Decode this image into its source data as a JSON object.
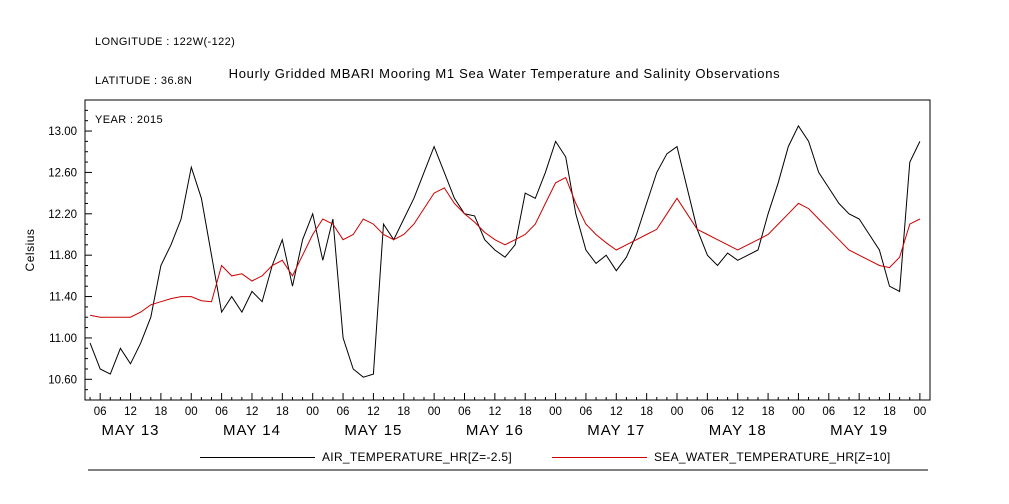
{
  "header": {
    "longitude": "LONGITUDE : 122W(-122)",
    "latitude": "LATITUDE : 36.8N",
    "year": "YEAR : 2015"
  },
  "chart_data": {
    "type": "line",
    "title": "Hourly Gridded MBARI Mooring M1 Sea Water Temperature and Salinity Observations",
    "xlabel": "",
    "ylabel": "Celsius",
    "x_unit": "hours since 2015-05-13 00:00",
    "xlim": [
      3,
      170
    ],
    "ylim": [
      10.4,
      13.3
    ],
    "grid": false,
    "legend_position": "bottom",
    "yticks": [
      10.6,
      11.0,
      11.4,
      11.8,
      12.2,
      12.6,
      13.0
    ],
    "ytick_labels": [
      "10.60",
      "11.00",
      "11.40",
      "11.80",
      "12.20",
      "12.60",
      "13.00"
    ],
    "xtick_hours": [
      6,
      12,
      18,
      24,
      30,
      36,
      42,
      48,
      54,
      60,
      66,
      72,
      78,
      84,
      90,
      96,
      102,
      108,
      114,
      120,
      126,
      132,
      138,
      144,
      150,
      156,
      162,
      168
    ],
    "xtick_labels": [
      "06",
      "12",
      "18",
      "00",
      "06",
      "12",
      "18",
      "00",
      "06",
      "12",
      "18",
      "00",
      "06",
      "12",
      "18",
      "00",
      "06",
      "12",
      "18",
      "00",
      "06",
      "12",
      "18",
      "00",
      "06",
      "12",
      "18",
      "00"
    ],
    "day_labels": [
      {
        "label": "MAY 13",
        "hour": 12
      },
      {
        "label": "MAY 14",
        "hour": 36
      },
      {
        "label": "MAY 15",
        "hour": 60
      },
      {
        "label": "MAY 16",
        "hour": 84
      },
      {
        "label": "MAY 17",
        "hour": 108
      },
      {
        "label": "MAY 18",
        "hour": 132
      },
      {
        "label": "MAY 19",
        "hour": 156
      }
    ],
    "x_start": 4,
    "x_step": 2,
    "series": [
      {
        "name": "AIR_TEMPERATURE_HR[Z=-2.5]",
        "color": "#000000",
        "values": [
          10.95,
          10.7,
          10.65,
          10.9,
          10.75,
          10.95,
          11.2,
          11.7,
          11.9,
          12.15,
          12.65,
          12.35,
          11.8,
          11.25,
          11.4,
          11.25,
          11.45,
          11.35,
          11.7,
          11.95,
          11.5,
          11.95,
          12.2,
          11.75,
          12.15,
          11.0,
          10.7,
          10.62,
          10.65,
          12.1,
          11.95,
          12.15,
          12.35,
          12.6,
          12.85,
          12.6,
          12.35,
          12.2,
          12.18,
          11.95,
          11.85,
          11.78,
          11.9,
          12.4,
          12.35,
          12.6,
          12.9,
          12.75,
          12.2,
          11.85,
          11.72,
          11.8,
          11.65,
          11.78,
          12.0,
          12.3,
          12.6,
          12.78,
          12.85,
          12.45,
          12.05,
          11.8,
          11.7,
          11.82,
          11.75,
          11.8,
          11.85,
          12.2,
          12.5,
          12.85,
          13.05,
          12.9,
          12.6,
          12.45,
          12.3,
          12.2,
          12.15,
          12.0,
          11.85,
          11.5,
          11.45,
          12.7,
          12.9
        ]
      },
      {
        "name": "SEA_WATER_TEMPERATURE_HR[Z=10]",
        "color": "#cc0000",
        "values": [
          11.22,
          11.2,
          11.2,
          11.2,
          11.2,
          11.25,
          11.32,
          11.35,
          11.38,
          11.4,
          11.4,
          11.36,
          11.35,
          11.7,
          11.6,
          11.62,
          11.55,
          11.6,
          11.7,
          11.75,
          11.6,
          11.8,
          12.0,
          12.15,
          12.1,
          11.95,
          12.0,
          12.15,
          12.1,
          12.0,
          11.95,
          12.0,
          12.1,
          12.25,
          12.4,
          12.45,
          12.3,
          12.2,
          12.12,
          12.02,
          11.95,
          11.9,
          11.95,
          12.0,
          12.1,
          12.3,
          12.5,
          12.55,
          12.3,
          12.1,
          12.0,
          11.92,
          11.85,
          11.9,
          11.95,
          12.0,
          12.05,
          12.2,
          12.35,
          12.2,
          12.05,
          12.0,
          11.95,
          11.9,
          11.85,
          11.9,
          11.95,
          12.0,
          12.1,
          12.2,
          12.3,
          12.25,
          12.15,
          12.05,
          11.95,
          11.85,
          11.8,
          11.75,
          11.7,
          11.68,
          11.78,
          12.1,
          12.15
        ]
      }
    ],
    "legend": [
      {
        "label": "AIR_TEMPERATURE_HR[Z=-2.5]",
        "color": "#000000"
      },
      {
        "label": "SEA_WATER_TEMPERATURE_HR[Z=10]",
        "color": "#cc0000"
      }
    ]
  }
}
